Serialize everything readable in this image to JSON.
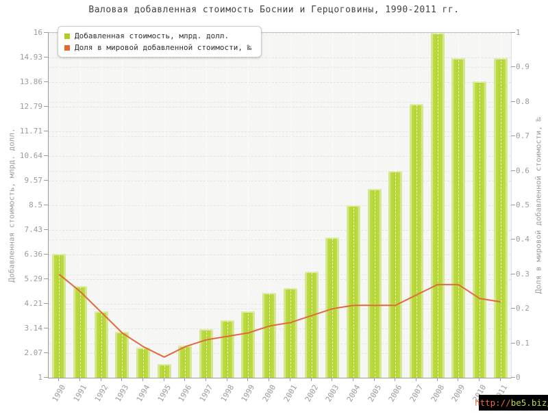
{
  "chart": {
    "title": "Валовая добавленная стоимость Боснии и Герцоговины, 1990-2011 гг."
  },
  "chart_data": {
    "type": "bar",
    "title": "Валовая добавленная стоимость Боснии и Герцоговины, 1990-2011 гг.",
    "categories": [
      "1990",
      "1991",
      "1992",
      "1993",
      "1994",
      "1995",
      "1996",
      "1997",
      "1998",
      "1999",
      "2000",
      "2001",
      "2002",
      "2003",
      "2004",
      "2005",
      "2006",
      "2007",
      "2008",
      "2009",
      "2010",
      "2011"
    ],
    "series": [
      {
        "name": "Добавленная стоимость, млрд. долл.",
        "type": "bar",
        "axis": "left",
        "color": "#b3d530",
        "values": [
          6.4,
          5.0,
          3.9,
          3.0,
          2.3,
          1.6,
          2.4,
          3.1,
          3.5,
          3.9,
          4.7,
          4.9,
          5.6,
          7.1,
          8.5,
          9.2,
          10.0,
          12.9,
          16.0,
          14.9,
          13.9,
          14.9
        ]
      },
      {
        "name": "Доля в мировой добавленной стоимости, ‰",
        "type": "line",
        "axis": "right",
        "color": "#e0662e",
        "values": [
          0.3,
          0.25,
          0.19,
          0.13,
          0.09,
          0.06,
          0.09,
          0.11,
          0.12,
          0.13,
          0.15,
          0.16,
          0.18,
          0.2,
          0.21,
          0.21,
          0.21,
          0.24,
          0.27,
          0.27,
          0.23,
          0.22
        ]
      }
    ],
    "left_axis": {
      "label": "Добавленная стоимость, млрд. долл.",
      "range": [
        1,
        16
      ],
      "ticks": [
        "16",
        "14.93",
        "13.86",
        "12.79",
        "11.71",
        "10.64",
        "9.57",
        "8.5",
        "7.43",
        "6.36",
        "5.29",
        "4.21",
        "3.14",
        "2.07",
        "1"
      ]
    },
    "right_axis": {
      "label": "Доля в мировой добавленной стоимости, ‰",
      "range": [
        0,
        1
      ],
      "ticks": [
        "1",
        "0.9",
        "0.8",
        "0.7",
        "0.6",
        "0.5",
        "0.4",
        "0.3",
        "0.2",
        "0.1",
        "0"
      ]
    },
    "grid": true,
    "legend_position": "top-left"
  },
  "watermark": {
    "prefix": "http://",
    "domain": "be5.biz/",
    "prefix_color": "#ee6a3a",
    "domain_color": "#c8dc2f"
  },
  "colors": {
    "bar_main": "#b3d530",
    "bar_edge": "#d6e88f",
    "bar_cap": "#ddeca6",
    "line": "#e1693f",
    "legend_marker_bar": "#afce20",
    "legend_marker_line": "#df6b28",
    "plot_bg": "#f6f6f4",
    "axis_text": "#9b9b9b"
  }
}
